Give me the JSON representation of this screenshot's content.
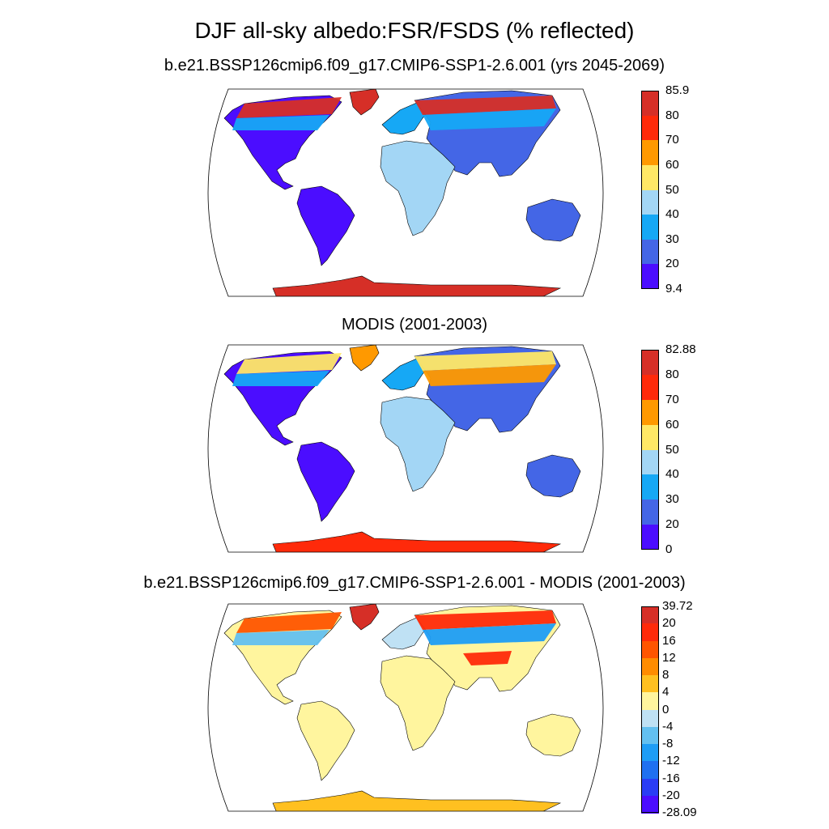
{
  "figure": {
    "title": "DJF all-sky albedo:FSR/FSDS (% reflected)"
  },
  "panels": [
    {
      "name": "model",
      "subtitle": "b.e21.BSSP126cmip6.f09_g17.CMIP6-SSP1-2.6.001 (yrs 2045-2069)",
      "colorbar": {
        "labels": [
          "85.9",
          "80",
          "70",
          "60",
          "50",
          "40",
          "30",
          "20",
          "9.4"
        ],
        "colors": [
          "#d62f27",
          "#ff2a0a",
          "#ff9900",
          "#ffe866",
          "#a3d6f5",
          "#16a8f5",
          "#4466e6",
          "#4b0dff"
        ]
      }
    },
    {
      "name": "obs",
      "subtitle": "MODIS (2001-2003)",
      "colorbar": {
        "labels": [
          "82.88",
          "80",
          "70",
          "60",
          "50",
          "40",
          "30",
          "20",
          "0"
        ],
        "colors": [
          "#d62f27",
          "#ff2a0a",
          "#ff9900",
          "#ffe866",
          "#a3d6f5",
          "#16a8f5",
          "#4466e6",
          "#4b0dff"
        ]
      }
    },
    {
      "name": "diff",
      "subtitle": "b.e21.BSSP126cmip6.f09_g17.CMIP6-SSP1-2.6.001 - MODIS (2001-2003)",
      "colorbar": {
        "labels": [
          "39.72",
          "20",
          "16",
          "12",
          "8",
          "4",
          "0",
          "-4",
          "-8",
          "-12",
          "-16",
          "-20",
          "-28.09"
        ],
        "colors": [
          "#d62f27",
          "#ff2a0a",
          "#ff5500",
          "#ff8c00",
          "#ffc020",
          "#fff59e",
          "#bfe1f4",
          "#63c0f0",
          "#1e9df5",
          "#1f70f0",
          "#2a3df5",
          "#4b0dff"
        ]
      }
    }
  ],
  "icons": [
    "world-map-robinson"
  ]
}
